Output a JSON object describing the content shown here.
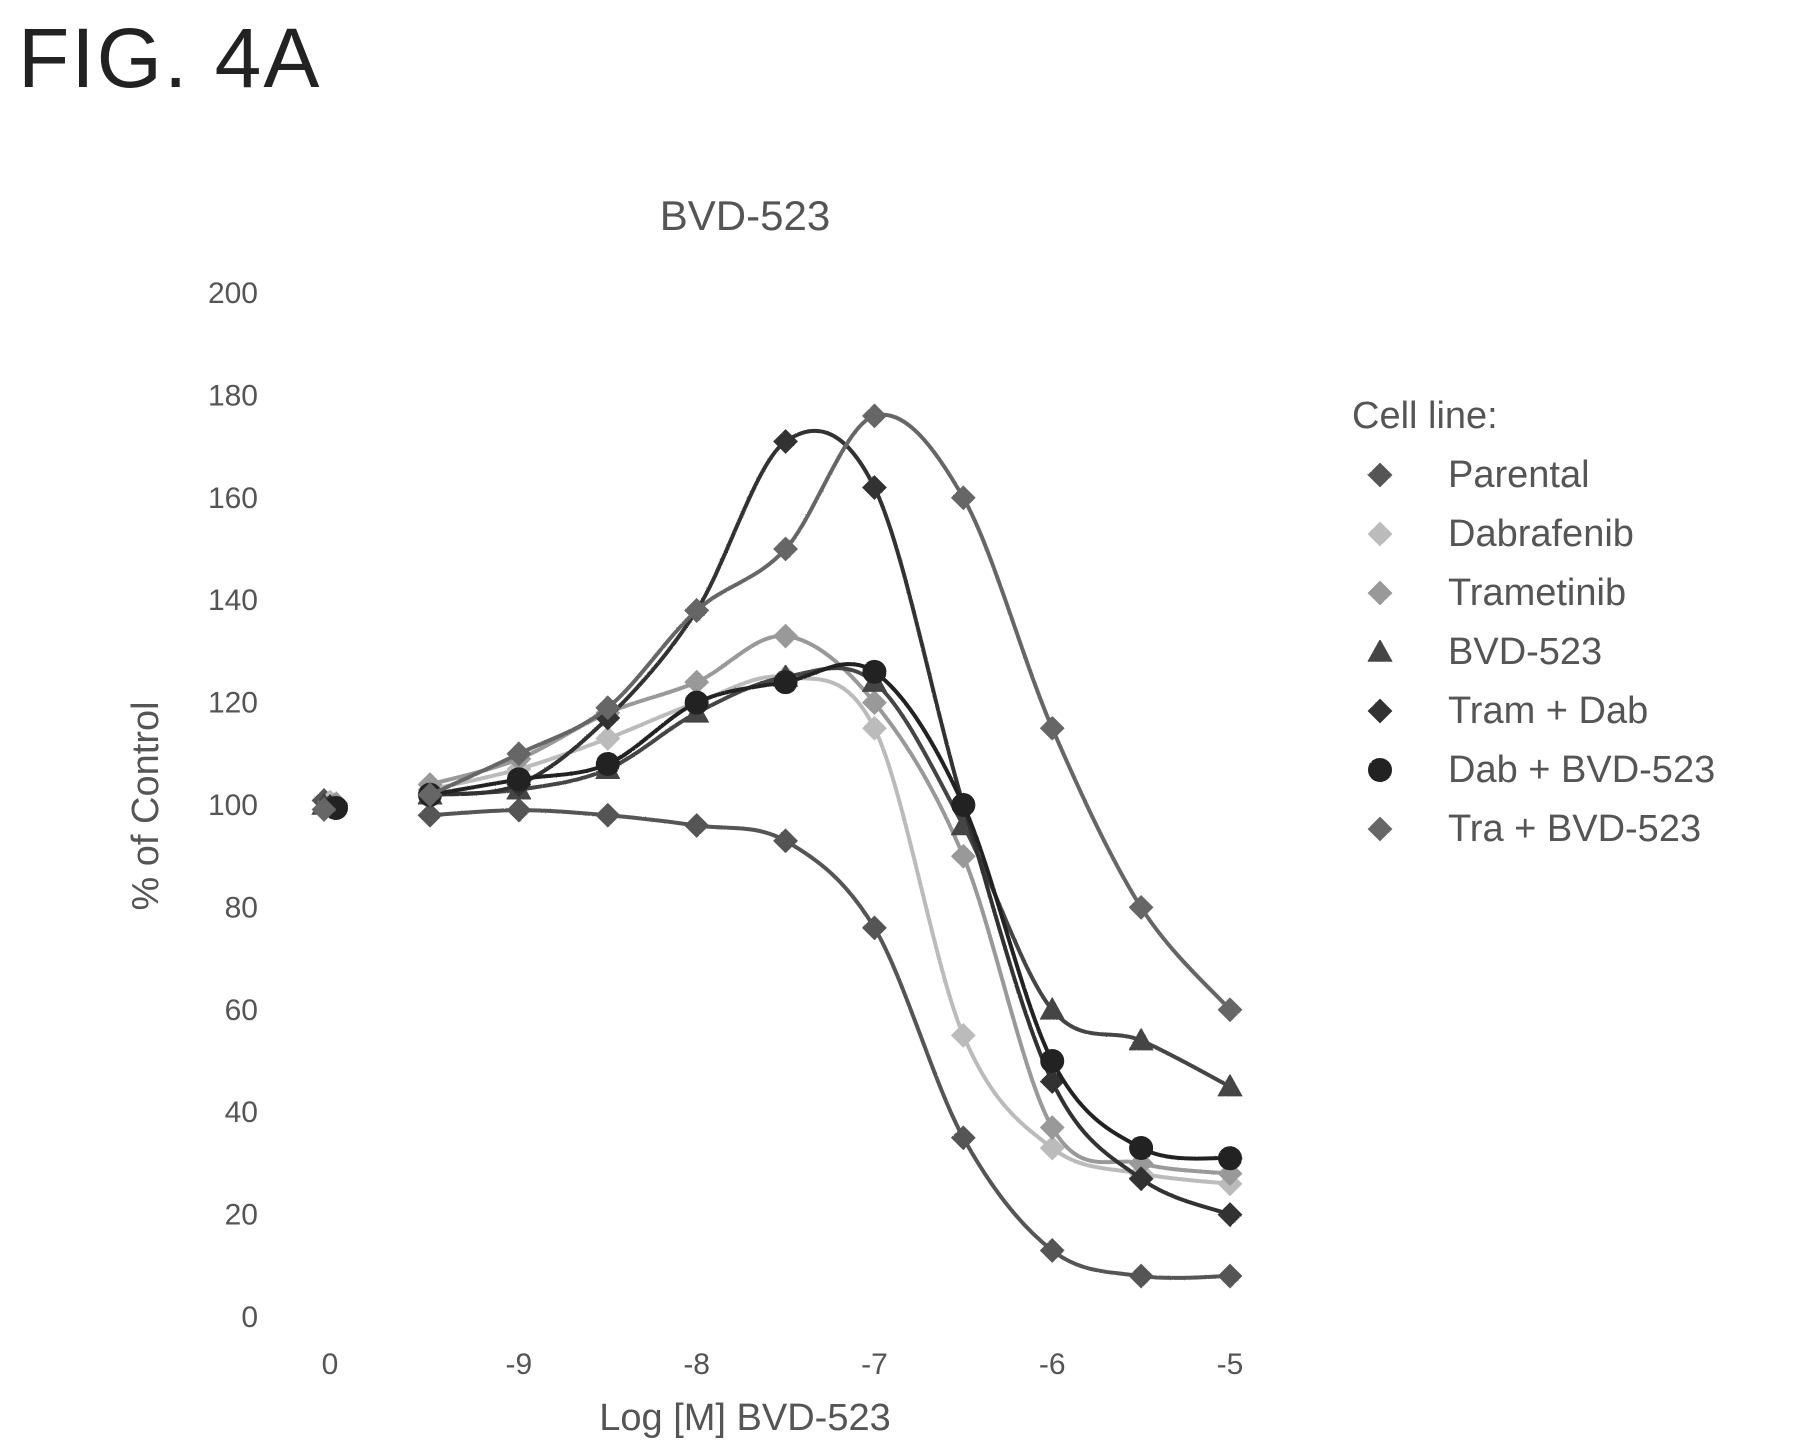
{
  "figure_label": "FIG. 4A",
  "chart_data": {
    "type": "line",
    "title": "BVD-523",
    "xlabel": "Log [M] BVD-523",
    "ylabel": "% of Control",
    "ylim": [
      0,
      200
    ],
    "yticks": [
      0,
      20,
      40,
      60,
      80,
      100,
      120,
      140,
      160,
      180,
      200
    ],
    "xlim_broken": {
      "left_segment": [
        0
      ],
      "right_segment": [
        -9.5,
        -5
      ]
    },
    "xticks": [
      0,
      -9,
      -8,
      -7,
      -6,
      -5
    ],
    "xtick_labels": [
      "0",
      "-9",
      "-8",
      "-7",
      "-6",
      "-5"
    ],
    "legend_title": "Cell line:",
    "legend_position": "right",
    "x": [
      -9.5,
      -9,
      -8.5,
      -8,
      -7.5,
      -7,
      -6.5,
      -6,
      -5.5,
      -5
    ],
    "series": [
      {
        "name": "Parental",
        "color": "#555555",
        "marker": "diamond",
        "control": 100,
        "values": [
          98,
          99,
          98,
          96,
          93,
          76,
          35,
          13,
          8,
          8
        ]
      },
      {
        "name": "Dabrafenib",
        "color": "#bbbbbb",
        "marker": "diamond",
        "control": 100,
        "values": [
          103,
          107,
          113,
          120,
          125,
          115,
          55,
          33,
          28,
          26
        ]
      },
      {
        "name": "Trametinib",
        "color": "#999999",
        "marker": "diamond",
        "control": 100,
        "values": [
          104,
          109,
          118,
          124,
          133,
          120,
          90,
          37,
          30,
          28
        ]
      },
      {
        "name": "BVD-523",
        "color": "#444444",
        "marker": "triangle",
        "control": 100,
        "values": [
          102,
          103,
          107,
          118,
          125,
          124,
          96,
          60,
          54,
          45
        ]
      },
      {
        "name": "Tram + Dab",
        "color": "#333333",
        "marker": "diamond",
        "control": 100,
        "values": [
          102,
          104,
          117,
          138,
          171,
          162,
          100,
          46,
          27,
          20
        ]
      },
      {
        "name": "Dab + BVD-523",
        "color": "#222222",
        "marker": "circle",
        "control": 100,
        "values": [
          102,
          105,
          108,
          120,
          124,
          126,
          100,
          50,
          33,
          31
        ]
      },
      {
        "name": "Tra + BVD-523",
        "color": "#666666",
        "marker": "diamond",
        "control": 100,
        "values": [
          102,
          110,
          119,
          138,
          150,
          176,
          160,
          115,
          80,
          60
        ]
      }
    ]
  }
}
